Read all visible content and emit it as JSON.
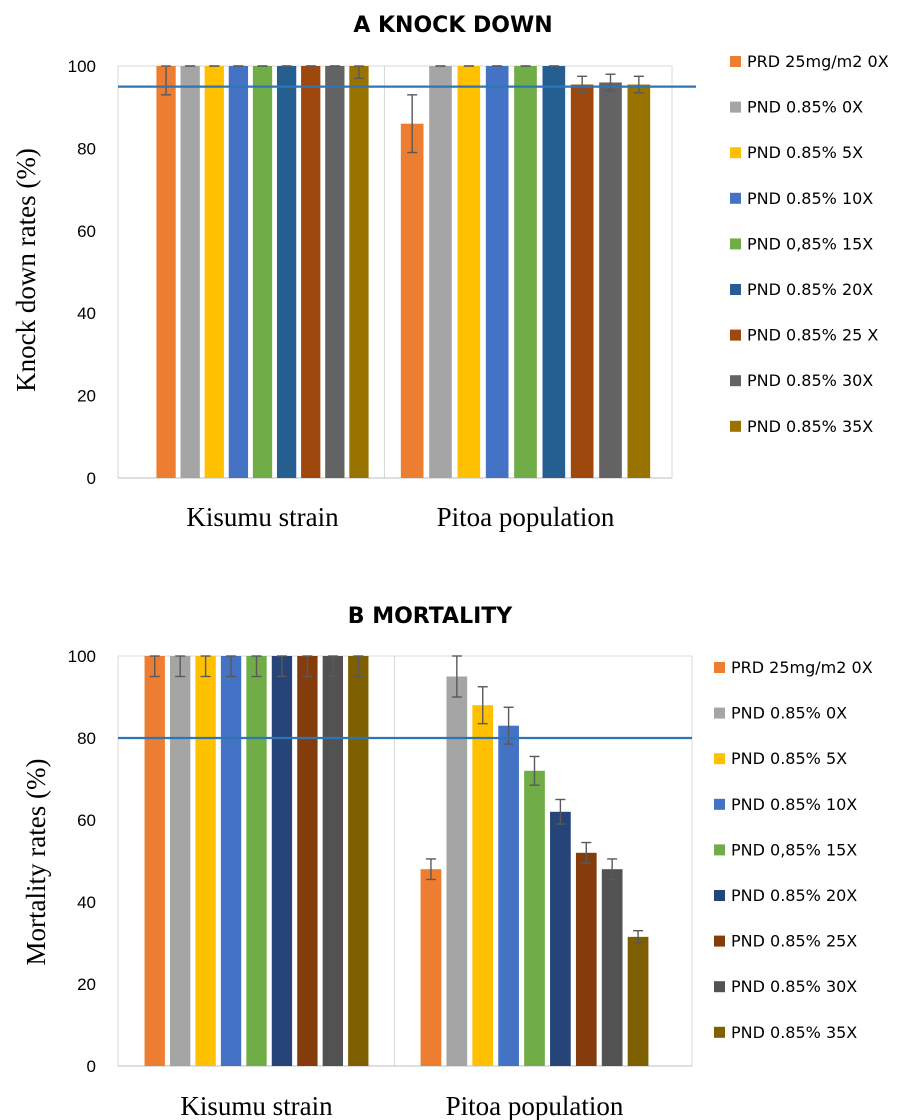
{
  "chart_data": [
    {
      "type": "bar",
      "title": "A  KNOCK DOWN",
      "ylabel": "Knock down rates (%)",
      "xlabel": "",
      "ylim": [
        0,
        100
      ],
      "yticks": [
        0,
        20,
        40,
        60,
        80,
        100
      ],
      "grid": false,
      "legend_position": "right",
      "reference_line": 95,
      "categories": [
        "Kisumu strain",
        "Pitoa population"
      ],
      "series": [
        {
          "name": "PRD 25mg/m2 0X",
          "color": "#ED7D31",
          "values": [
            100,
            86
          ],
          "errors": [
            7,
            7
          ]
        },
        {
          "name": "PND  0.85% 0X",
          "color": "#A5A5A5",
          "values": [
            100,
            100
          ],
          "errors": [
            0,
            0
          ]
        },
        {
          "name": "PND 0.85% 5X",
          "color": "#FFC000",
          "values": [
            100,
            100
          ],
          "errors": [
            0,
            0
          ]
        },
        {
          "name": "PND 0.85% 10X",
          "color": "#4472C4",
          "values": [
            100,
            100
          ],
          "errors": [
            0,
            0
          ]
        },
        {
          "name": "PND  0,85% 15X",
          "color": "#70AD47",
          "values": [
            100,
            100
          ],
          "errors": [
            0,
            0
          ]
        },
        {
          "name": "PND  0.85% 20X",
          "color": "#255E91",
          "values": [
            100,
            100
          ],
          "errors": [
            0,
            0
          ]
        },
        {
          "name": "PND  0.85% 25 X",
          "color": "#9E480E",
          "values": [
            100,
            95.5
          ],
          "errors": [
            0,
            2
          ]
        },
        {
          "name": "PND 0.85% 30X",
          "color": "#636363",
          "values": [
            100,
            96
          ],
          "errors": [
            0,
            2
          ]
        },
        {
          "name": "PND  0.85% 35X",
          "color": "#997300",
          "values": [
            100,
            95.5
          ],
          "errors": [
            3,
            2
          ]
        }
      ]
    },
    {
      "type": "bar",
      "title": "B  MORTALITY",
      "ylabel": "Mortality rates (%)",
      "xlabel": "",
      "ylim": [
        0,
        100
      ],
      "yticks": [
        0,
        20,
        40,
        60,
        80,
        100
      ],
      "grid": false,
      "legend_position": "right",
      "reference_line": 80,
      "categories": [
        "Kisumu strain",
        "Pitoa population"
      ],
      "series": [
        {
          "name": "PRD 25mg/m2 0X",
          "color": "#ED7D31",
          "values": [
            100,
            48
          ],
          "errors": [
            5,
            2.5
          ]
        },
        {
          "name": "PND  0.85% 0X",
          "color": "#A5A5A5",
          "values": [
            100,
            95
          ],
          "errors": [
            5,
            5
          ]
        },
        {
          "name": "PND 0.85% 5X",
          "color": "#FFC000",
          "values": [
            100,
            88
          ],
          "errors": [
            5,
            4.5
          ]
        },
        {
          "name": "PND 0.85% 10X",
          "color": "#4472C4",
          "values": [
            100,
            83
          ],
          "errors": [
            5,
            4.5
          ]
        },
        {
          "name": "PND  0,85% 15X",
          "color": "#70AD47",
          "values": [
            100,
            72
          ],
          "errors": [
            5,
            3.5
          ]
        },
        {
          "name": "PND  0.85% 20X",
          "color": "#264478",
          "values": [
            100,
            62
          ],
          "errors": [
            5,
            3
          ]
        },
        {
          "name": "PND  0.85% 25X",
          "color": "#843C0C",
          "values": [
            100,
            52
          ],
          "errors": [
            5,
            2.5
          ]
        },
        {
          "name": "PND 0.85% 30X",
          "color": "#525252",
          "values": [
            100,
            48
          ],
          "errors": [
            5,
            2.5
          ]
        },
        {
          "name": "PND  0.85% 35X",
          "color": "#7F6000",
          "values": [
            100,
            31.5
          ],
          "errors": [
            5,
            1.5
          ]
        }
      ]
    }
  ]
}
